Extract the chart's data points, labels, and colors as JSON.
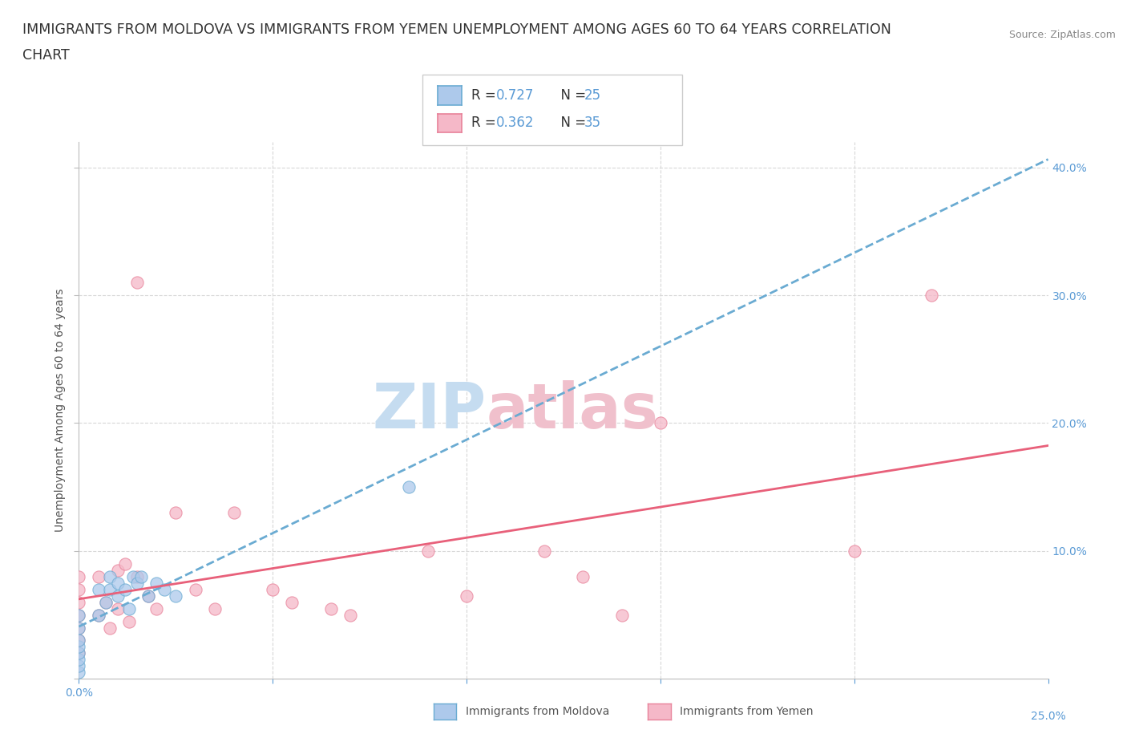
{
  "title_line1": "IMMIGRANTS FROM MOLDOVA VS IMMIGRANTS FROM YEMEN UNEMPLOYMENT AMONG AGES 60 TO 64 YEARS CORRELATION",
  "title_line2": "CHART",
  "source_text": "Source: ZipAtlas.com",
  "ylabel": "Unemployment Among Ages 60 to 64 years",
  "xlim": [
    0.0,
    0.25
  ],
  "ylim": [
    0.0,
    0.42
  ],
  "xticks": [
    0.0,
    0.05,
    0.1,
    0.15,
    0.2,
    0.25
  ],
  "yticks": [
    0.0,
    0.1,
    0.2,
    0.3,
    0.4
  ],
  "moldova_color": "#adc9eb",
  "moldova_edge_color": "#6aabd2",
  "yemen_color": "#f5b8c8",
  "yemen_edge_color": "#e8829a",
  "moldova_line_color": "#6aabd2",
  "yemen_line_color": "#e8607a",
  "grid_color": "#d8d8d8",
  "grid_linestyle": "--",
  "watermark_zip_color": "#c5dcf0",
  "watermark_atlas_color": "#f0c0cc",
  "legend_R_moldova": "0.727",
  "legend_N_moldova": "25",
  "legend_R_yemen": "0.362",
  "legend_N_yemen": "35",
  "moldova_scatter_x": [
    0.0,
    0.0,
    0.0,
    0.0,
    0.0,
    0.0,
    0.0,
    0.0,
    0.005,
    0.005,
    0.007,
    0.008,
    0.008,
    0.01,
    0.01,
    0.012,
    0.013,
    0.014,
    0.015,
    0.016,
    0.018,
    0.02,
    0.022,
    0.025,
    0.085
  ],
  "moldova_scatter_y": [
    0.005,
    0.01,
    0.015,
    0.02,
    0.025,
    0.03,
    0.04,
    0.05,
    0.05,
    0.07,
    0.06,
    0.07,
    0.08,
    0.065,
    0.075,
    0.07,
    0.055,
    0.08,
    0.075,
    0.08,
    0.065,
    0.075,
    0.07,
    0.065,
    0.15
  ],
  "yemen_scatter_x": [
    0.0,
    0.0,
    0.0,
    0.0,
    0.0,
    0.0,
    0.0,
    0.005,
    0.005,
    0.007,
    0.008,
    0.01,
    0.01,
    0.012,
    0.013,
    0.015,
    0.015,
    0.018,
    0.02,
    0.025,
    0.03,
    0.035,
    0.04,
    0.05,
    0.055,
    0.065,
    0.07,
    0.09,
    0.1,
    0.12,
    0.13,
    0.14,
    0.15,
    0.2,
    0.22
  ],
  "yemen_scatter_y": [
    0.02,
    0.03,
    0.04,
    0.05,
    0.06,
    0.07,
    0.08,
    0.05,
    0.08,
    0.06,
    0.04,
    0.055,
    0.085,
    0.09,
    0.045,
    0.08,
    0.31,
    0.065,
    0.055,
    0.13,
    0.07,
    0.055,
    0.13,
    0.07,
    0.06,
    0.055,
    0.05,
    0.1,
    0.065,
    0.1,
    0.08,
    0.05,
    0.2,
    0.1,
    0.3
  ],
  "background_color": "#ffffff",
  "title_fontsize": 12.5,
  "axis_label_fontsize": 10,
  "tick_fontsize": 10,
  "source_fontsize": 9
}
